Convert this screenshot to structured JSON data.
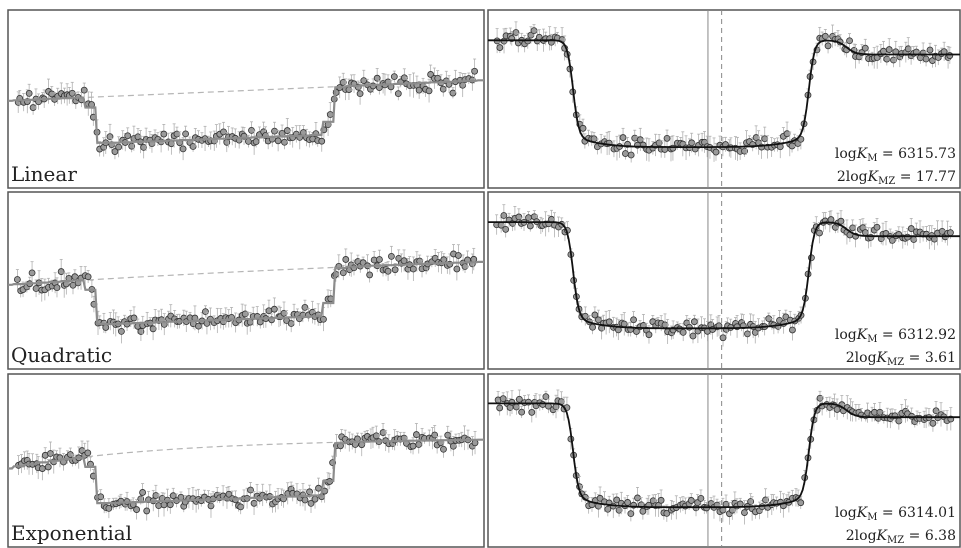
{
  "colors": {
    "frame": "#555555",
    "point_fill": "#9a9a9a",
    "point_stroke": "#333333",
    "errorbar": "#b0b0b0",
    "model_gray": "#8c8c8c",
    "baseline_dashed": "#b5b5b5",
    "model_black": "#111111",
    "vline_solid": "#888888",
    "vline_dashed": "#888888"
  },
  "chart_data": [
    {
      "type": "scatter",
      "label": "Linear",
      "panel": "left",
      "baseline": "linear",
      "transit": {
        "ingress": 0.18,
        "egress": 0.68,
        "depth": 0.62
      },
      "baseline_start": 0.27,
      "baseline_end": 0.39
    },
    {
      "type": "scatter",
      "label": "",
      "panel": "right",
      "annotations": [
        "logKₘ = 6315.73",
        "2logKₘz = 17.77"
      ],
      "annotation_lines": [
        {
          "prefix": "log",
          "sym": "K",
          "sub": "M",
          "value": " = 6315.73"
        },
        {
          "prefix": "2log",
          "sym": "K",
          "sub": "MZ",
          "value": " = 17.77"
        }
      ]
    },
    {
      "type": "scatter",
      "label": "Quadratic",
      "panel": "left",
      "baseline": "quadratic",
      "transit": {
        "ingress": 0.18,
        "egress": 0.68,
        "depth": 0.62
      },
      "baseline_start": 0.27,
      "baseline_end": 0.39
    },
    {
      "type": "scatter",
      "label": "",
      "panel": "right",
      "annotations": [
        "logKₘ = 6312.92",
        "2logKₘz = 3.61"
      ],
      "annotation_lines": [
        {
          "prefix": "log",
          "sym": "K",
          "sub": "M",
          "value": " = 6312.92"
        },
        {
          "prefix": "2log",
          "sym": "K",
          "sub": "MZ",
          "value": " = 3.61"
        }
      ]
    },
    {
      "type": "scatter",
      "label": "Exponential",
      "panel": "left",
      "baseline": "exponential",
      "transit": {
        "ingress": 0.18,
        "egress": 0.68,
        "depth": 0.62
      },
      "baseline_start": 0.27,
      "baseline_end": 0.39
    },
    {
      "type": "scatter",
      "label": "",
      "panel": "right",
      "annotations": [
        "logKₘ = 6314.01",
        "2logKₘz = 6.38"
      ],
      "annotation_lines": [
        {
          "prefix": "log",
          "sym": "K",
          "sub": "M",
          "value": " = 6314.01"
        },
        {
          "prefix": "2log",
          "sym": "K",
          "sub": "MZ",
          "value": " = 6.38"
        }
      ]
    }
  ]
}
